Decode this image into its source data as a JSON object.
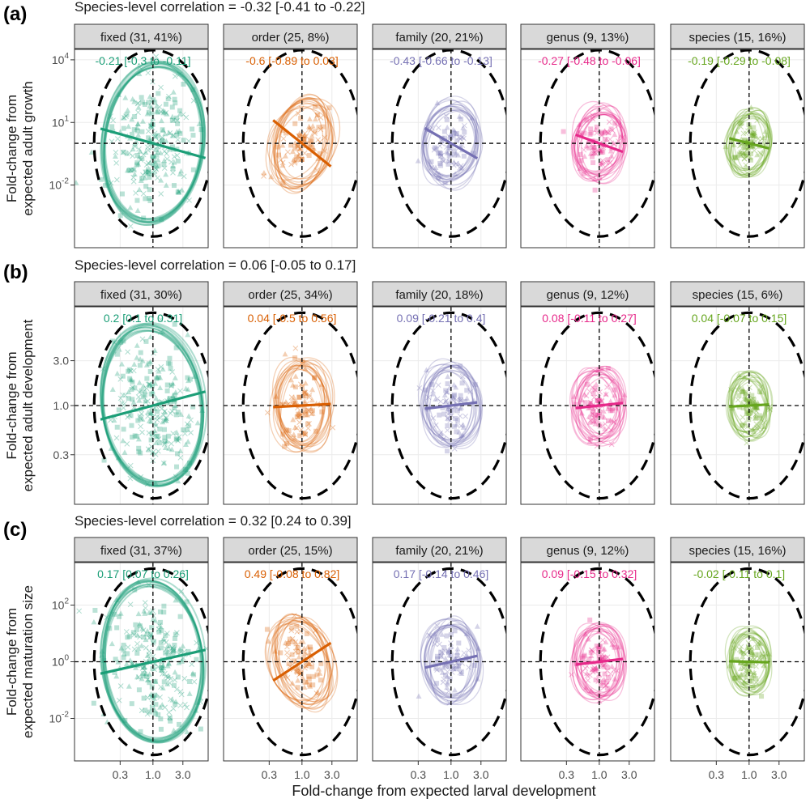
{
  "x_axis_label": "Fold-change from expected larval development",
  "x_ticks": [
    "0.3",
    "1.0",
    "3.0"
  ],
  "colors": {
    "fixed": "#1b9e77",
    "order": "#d95f02",
    "family": "#7570b3",
    "genus": "#e7298a",
    "species": "#66a61e",
    "strip_bg": "#d9d9d9",
    "grid": "#ebebeb"
  },
  "rows": [
    {
      "panel_label": "(a)",
      "header": "Species-level correlation = -0.32 [-0.41 to -0.22]",
      "y_label_lines": [
        "Fold-change from",
        "expected adult growth"
      ],
      "y_ticks": [
        {
          "base": "10",
          "exp": "4",
          "value": 4
        },
        {
          "base": "10",
          "exp": "1",
          "value": 1
        },
        {
          "base": "10",
          "exp": "-2",
          "value": -2
        }
      ],
      "y_range": [
        -5.0,
        4.5
      ],
      "y_ref": 0,
      "chart_data": [
        {
          "type": "scatter",
          "level": "fixed",
          "strip": "fixed (31, 41%)",
          "correlation": "-0.21 [-0.3 to -0.11]",
          "slope": -0.21
        },
        {
          "type": "scatter",
          "level": "order",
          "strip": "order (25, 8%)",
          "correlation": "-0.6 [-0.89 to 0.03]",
          "slope": -0.6
        },
        {
          "type": "scatter",
          "level": "family",
          "strip": "family (20, 21%)",
          "correlation": "-0.43 [-0.66 to -0.13]",
          "slope": -0.43
        },
        {
          "type": "scatter",
          "level": "genus",
          "strip": "genus (9, 13%)",
          "correlation": "-0.27 [-0.48 to -0.06]",
          "slope": -0.27
        },
        {
          "type": "scatter",
          "level": "species",
          "strip": "species (15, 16%)",
          "correlation": "-0.19 [-0.29 to -0.08]",
          "slope": -0.19
        }
      ]
    },
    {
      "panel_label": "(b)",
      "header": "Species-level correlation = 0.06 [-0.05 to 0.17]",
      "y_label_lines": [
        "Fold-change from",
        "expected adult development"
      ],
      "y_ticks": [
        {
          "base": "3.0",
          "exp": "",
          "value": 0.477
        },
        {
          "base": "1.0",
          "exp": "",
          "value": 0
        },
        {
          "base": "0.3",
          "exp": "",
          "value": -0.523
        }
      ],
      "y_range": [
        -1.05,
        1.05
      ],
      "y_ref": 0,
      "chart_data": [
        {
          "type": "scatter",
          "level": "fixed",
          "strip": "fixed (31, 30%)",
          "correlation": "0.2 [0.1 to 0.31]",
          "slope": 0.2
        },
        {
          "type": "scatter",
          "level": "order",
          "strip": "order (25, 34%)",
          "correlation": "0.04 [-0.5 to 0.56]",
          "slope": 0.04
        },
        {
          "type": "scatter",
          "level": "family",
          "strip": "family (20, 18%)",
          "correlation": "0.09 [-0.21 to 0.4]",
          "slope": 0.09
        },
        {
          "type": "scatter",
          "level": "genus",
          "strip": "genus (9, 12%)",
          "correlation": "0.08 [-0.11 to 0.27]",
          "slope": 0.08
        },
        {
          "type": "scatter",
          "level": "species",
          "strip": "species (15, 6%)",
          "correlation": "0.04 [-0.07 to 0.15]",
          "slope": 0.04
        }
      ]
    },
    {
      "panel_label": "(c)",
      "header": "Species-level correlation = 0.32 [0.24 to 0.39]",
      "y_label_lines": [
        "Fold-change from",
        "expected maturation size"
      ],
      "y_ticks": [
        {
          "base": "10",
          "exp": "2",
          "value": 2
        },
        {
          "base": "10",
          "exp": "0",
          "value": 0
        },
        {
          "base": "10",
          "exp": "-2",
          "value": -2
        }
      ],
      "y_range": [
        -3.5,
        3.5
      ],
      "y_ref": 0,
      "chart_data": [
        {
          "type": "scatter",
          "level": "fixed",
          "strip": "fixed (31, 37%)",
          "correlation": "0.17 [0.07 to 0.26]",
          "slope": 0.17
        },
        {
          "type": "scatter",
          "level": "order",
          "strip": "order (25, 15%)",
          "correlation": "0.49 [-0.08 to 0.82]",
          "slope": 0.49
        },
        {
          "type": "scatter",
          "level": "family",
          "strip": "family (20, 21%)",
          "correlation": "0.17 [-0.14 to 0.46]",
          "slope": 0.17
        },
        {
          "type": "scatter",
          "level": "genus",
          "strip": "genus (9, 12%)",
          "correlation": "0.09 [-0.15 to 0.32]",
          "slope": 0.09
        },
        {
          "type": "scatter",
          "level": "species",
          "strip": "species (15, 16%)",
          "correlation": "-0.02 [-0.11 to 0.1]",
          "slope": -0.02
        }
      ]
    }
  ]
}
